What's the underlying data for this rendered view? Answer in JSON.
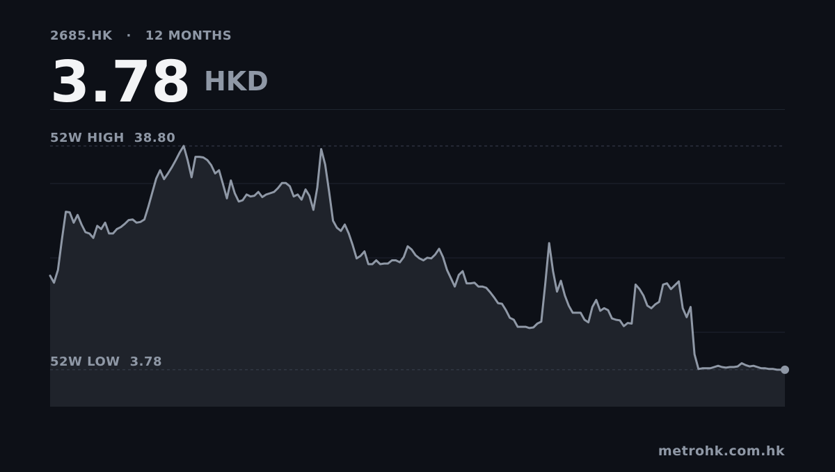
{
  "chart_data": {
    "type": "area",
    "ticker": "2685.HK",
    "separator": "·",
    "period": "12 MONTHS",
    "price": {
      "value": 3.78,
      "label": "3.78"
    },
    "currency": "HKD",
    "high": {
      "name": "52W HIGH",
      "value": 38.8,
      "label": "38.80"
    },
    "low": {
      "name": "52W LOW",
      "value": 3.78,
      "label": "3.78"
    },
    "source": "metrohk.com.hk",
    "color": "#8f98a6",
    "ylim": [
      -2,
      44.56
    ],
    "values": [
      18.5,
      17.4,
      19.4,
      24.1,
      28.5,
      28.4,
      26.8,
      28.0,
      26.5,
      25.3,
      25.1,
      24.4,
      26.3,
      25.8,
      26.8,
      25.1,
      25.1,
      25.8,
      26.1,
      26.6,
      27.2,
      27.3,
      26.8,
      26.9,
      27.3,
      29.3,
      31.5,
      33.7,
      35.0,
      33.6,
      34.5,
      35.5,
      36.6,
      37.8,
      38.8,
      36.6,
      33.9,
      37.1,
      37.1,
      37.0,
      36.6,
      35.8,
      34.5,
      35.0,
      32.8,
      30.6,
      33.4,
      31.4,
      30.1,
      30.3,
      31.2,
      30.9,
      31.0,
      31.6,
      30.8,
      31.2,
      31.4,
      31.6,
      32.2,
      33.0,
      33.0,
      32.5,
      30.9,
      31.2,
      30.4,
      32.0,
      31.0,
      28.8,
      32.3,
      38.3,
      35.9,
      31.7,
      27.1,
      26.0,
      25.5,
      26.5,
      25.1,
      23.3,
      21.2,
      21.6,
      22.3,
      20.3,
      20.3,
      20.9,
      20.3,
      20.4,
      20.4,
      20.9,
      20.9,
      20.6,
      21.4,
      23.1,
      22.6,
      21.7,
      21.2,
      20.9,
      21.3,
      21.2,
      21.8,
      22.7,
      21.4,
      19.4,
      18.1,
      16.8,
      18.6,
      19.2,
      17.3,
      17.3,
      17.4,
      16.8,
      16.8,
      16.6,
      15.9,
      15.1,
      14.2,
      14.1,
      13.1,
      11.9,
      11.6,
      10.5,
      10.5,
      10.5,
      10.3,
      10.4,
      11.0,
      11.3,
      17.1,
      23.6,
      19.2,
      16.0,
      17.7,
      15.4,
      13.8,
      12.7,
      12.7,
      12.7,
      11.6,
      11.2,
      13.6,
      14.7,
      13.0,
      13.4,
      13.1,
      11.8,
      11.6,
      11.5,
      10.6,
      11.1,
      11.0,
      17.1,
      16.4,
      15.4,
      13.8,
      13.4,
      14.0,
      14.4,
      17.1,
      17.3,
      16.4,
      17.0,
      17.6,
      13.4,
      12.0,
      13.6,
      6.2,
      3.9,
      4.0,
      4.0,
      4.0,
      4.2,
      4.4,
      4.2,
      4.1,
      4.2,
      4.2,
      4.3,
      4.8,
      4.5,
      4.3,
      4.4,
      4.2,
      4.0,
      4.0,
      3.9,
      3.9,
      3.78,
      3.78,
      3.78
    ]
  }
}
